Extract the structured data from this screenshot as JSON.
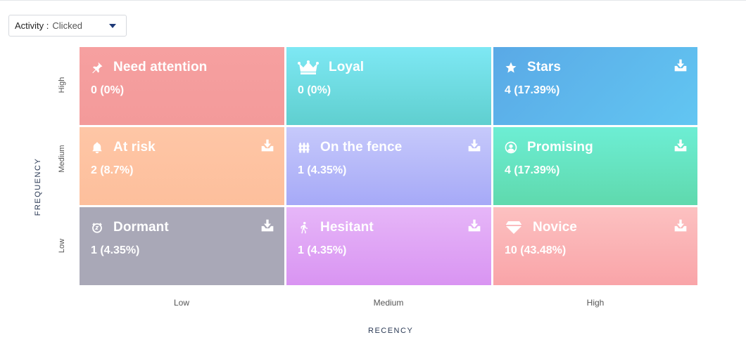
{
  "activity": {
    "label": "Activity :",
    "value": "Clicked"
  },
  "axes": {
    "y_title": "FREQUENCY",
    "x_title": "RECENCY",
    "y_ticks": [
      "High",
      "Medium",
      "Low"
    ],
    "x_ticks": [
      "Low",
      "Medium",
      "High"
    ]
  },
  "segments": [
    {
      "name": "Need attention",
      "count": "0 (0%)",
      "icon": "pin-icon",
      "download": false
    },
    {
      "name": "Loyal",
      "count": "0 (0%)",
      "icon": "crown-icon",
      "download": false
    },
    {
      "name": "Stars",
      "count": "4 (17.39%)",
      "icon": "star-icon",
      "download": true
    },
    {
      "name": "At risk",
      "count": "2 (8.7%)",
      "icon": "bell-icon",
      "download": true
    },
    {
      "name": "On the fence",
      "count": "1 (4.35%)",
      "icon": "fence-icon",
      "download": true
    },
    {
      "name": "Promising",
      "count": "4 (17.39%)",
      "icon": "user-circle-icon",
      "download": true
    },
    {
      "name": "Dormant",
      "count": "1 (4.35%)",
      "icon": "sleep-icon",
      "download": true
    },
    {
      "name": "Hesitant",
      "count": "1 (4.35%)",
      "icon": "walking-icon",
      "download": true
    },
    {
      "name": "Novice",
      "count": "10 (43.48%)",
      "icon": "gem-icon",
      "download": true
    }
  ],
  "colors": {
    "need_attention": "#f6a0a0",
    "loyal": "#7ee8f4",
    "stars": "#5aa9e6",
    "at_risk": "#fec6a6",
    "on_the_fence": "#b6b9fa",
    "promising": "#6deed4",
    "dormant": "#a9a8b7",
    "hesitant": "#e2abf6",
    "novice": "#fbb4b6"
  }
}
